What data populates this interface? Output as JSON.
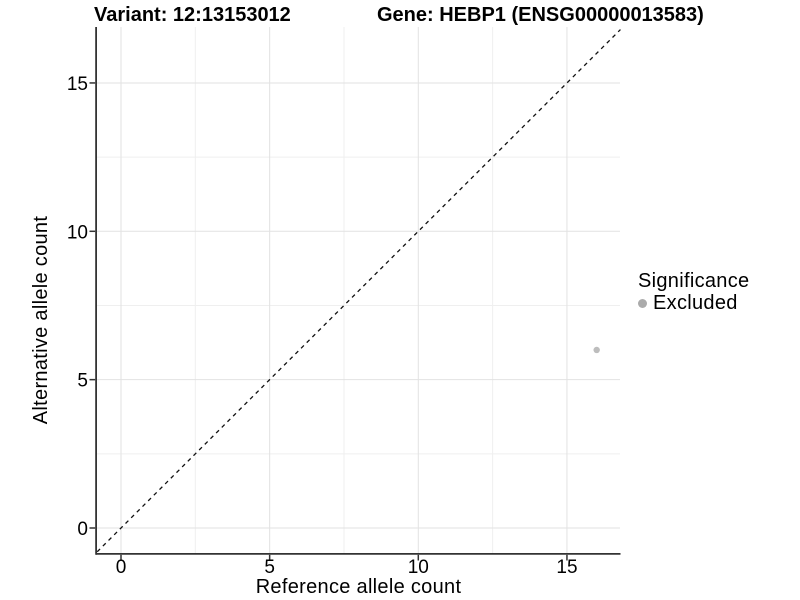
{
  "titles": {
    "variant": "Variant: 12:13153012",
    "gene": "Gene: HEBP1 (ENSG00000013583)"
  },
  "chart_data": {
    "type": "scatter",
    "title": "Variant: 12:13153012    Gene: HEBP1 (ENSG00000013583)",
    "xlabel": "Reference allele count",
    "ylabel": "Alternative allele count",
    "xlim": [
      -0.8,
      16.8
    ],
    "ylim": [
      -0.8,
      16.9
    ],
    "x_major_ticks": [
      0,
      5,
      10,
      15
    ],
    "y_major_ticks": [
      0,
      5,
      10,
      15
    ],
    "x_minor_ticks": [
      2.5,
      7.5,
      12.5
    ],
    "y_minor_ticks": [
      2.5,
      7.5,
      12.5
    ],
    "grid": "major+minor",
    "reference_line": {
      "equation": "y = x",
      "style": "dashed",
      "color": "#111111"
    },
    "series": [
      {
        "name": "Excluded",
        "color": "#bdbdbd",
        "points": [
          [
            16,
            6
          ]
        ]
      }
    ],
    "legend": {
      "title": "Significance",
      "position": "right",
      "items": [
        {
          "label": "Excluded",
          "color": "#ababab"
        }
      ]
    },
    "colors": {
      "axis_line": "#333333",
      "grid_major": "#e2e2e2",
      "grid_minor": "#efefef",
      "tick_text": "#000000"
    }
  }
}
